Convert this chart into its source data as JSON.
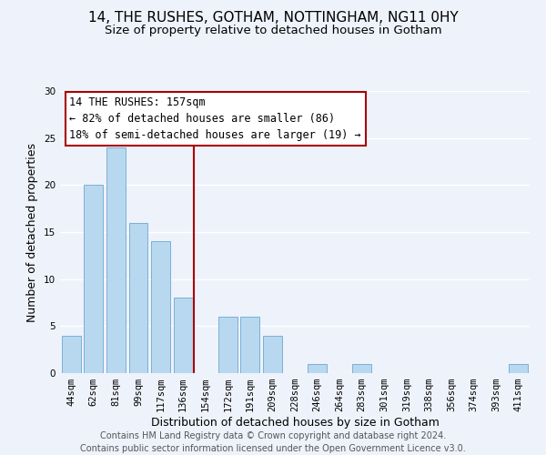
{
  "title": "14, THE RUSHES, GOTHAM, NOTTINGHAM, NG11 0HY",
  "subtitle": "Size of property relative to detached houses in Gotham",
  "xlabel": "Distribution of detached houses by size in Gotham",
  "ylabel": "Number of detached properties",
  "footer_line1": "Contains HM Land Registry data © Crown copyright and database right 2024.",
  "footer_line2": "Contains public sector information licensed under the Open Government Licence v3.0.",
  "annotation_line1": "14 THE RUSHES: 157sqm",
  "annotation_line2": "← 82% of detached houses are smaller (86)",
  "annotation_line3": "18% of semi-detached houses are larger (19) →",
  "bar_color": "#b8d8f0",
  "bar_edge_color": "#7ab0d4",
  "vline_color": "#aa0000",
  "bin_labels": [
    "44sqm",
    "62sqm",
    "81sqm",
    "99sqm",
    "117sqm",
    "136sqm",
    "154sqm",
    "172sqm",
    "191sqm",
    "209sqm",
    "228sqm",
    "246sqm",
    "264sqm",
    "283sqm",
    "301sqm",
    "319sqm",
    "338sqm",
    "356sqm",
    "374sqm",
    "393sqm",
    "411sqm"
  ],
  "bar_heights": [
    4,
    20,
    24,
    16,
    14,
    8,
    0,
    6,
    6,
    4,
    0,
    1,
    0,
    1,
    0,
    0,
    0,
    0,
    0,
    0,
    1
  ],
  "ylim": [
    0,
    30
  ],
  "yticks": [
    0,
    5,
    10,
    15,
    20,
    25,
    30
  ],
  "background_color": "#eef2fb",
  "grid_color": "#ffffff",
  "title_fontsize": 11,
  "subtitle_fontsize": 9.5,
  "axis_label_fontsize": 9,
  "tick_fontsize": 7.5,
  "annotation_fontsize": 8.5,
  "footer_fontsize": 7
}
